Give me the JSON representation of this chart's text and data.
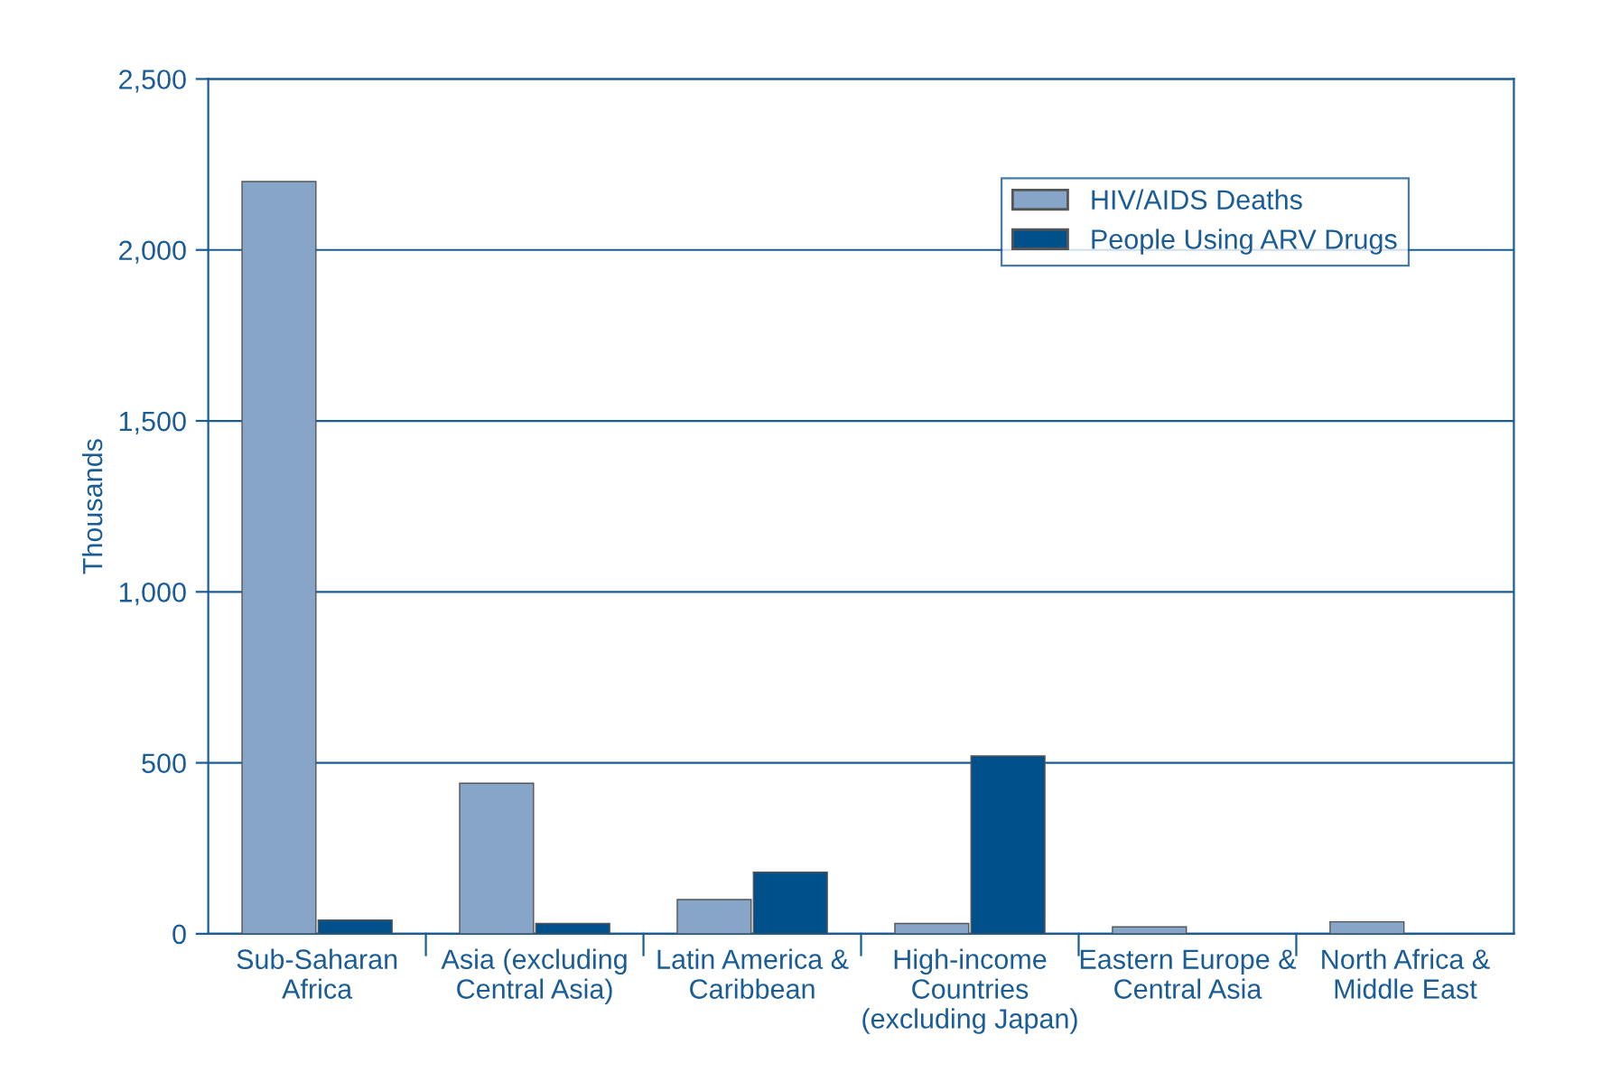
{
  "chart_data": {
    "type": "bar",
    "ylabel": "Thousands",
    "categories": [
      "Sub-Saharan\nAfrica",
      "Asia (excluding\nCentral Asia)",
      "Latin America &\nCaribbean",
      "High-income\nCountries\n(excluding Japan)",
      "Eastern Europe &\nCentral Asia",
      "North Africa &\nMiddle East"
    ],
    "series": [
      {
        "name": "HIV/AIDS Deaths",
        "color": "#87a5c8",
        "values": [
          2200,
          440,
          100,
          30,
          20,
          35
        ]
      },
      {
        "name": "People Using ARV Drugs",
        "color": "#00508c",
        "values": [
          40,
          30,
          180,
          520,
          null,
          null
        ]
      }
    ],
    "ylim": [
      0,
      2500
    ],
    "yticks": [
      0,
      500,
      {
        "value": 1000,
        "label": "1,000"
      },
      {
        "value": 1500,
        "label": "1,500"
      },
      {
        "value": 2000,
        "label": "2,000"
      },
      {
        "value": 2500,
        "label": "2,500"
      }
    ],
    "grid": "y",
    "legend": "top right"
  }
}
